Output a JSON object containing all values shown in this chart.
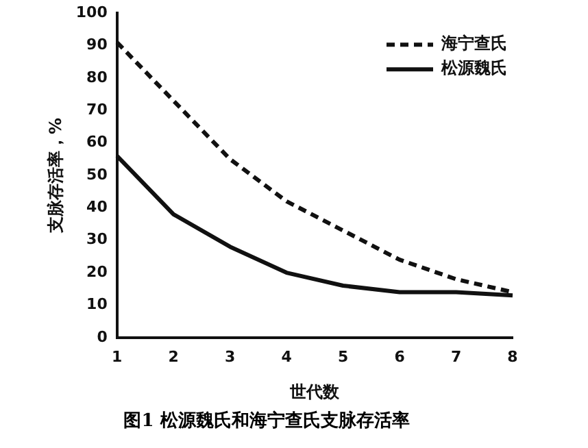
{
  "chart_data": {
    "type": "line",
    "xlabel": "世代数",
    "ylabel": "支脉存活率，%",
    "annotations": [
      "图1 松源魏氏和海宁查氏支脉存活率"
    ],
    "categories": [
      "1",
      "2",
      "3",
      "4",
      "5",
      "6",
      "7",
      "8"
    ],
    "series": [
      {
        "name": "海宁查氏",
        "color": "#111111",
        "line_style": "dashed",
        "values": [
          91,
          73,
          55,
          42,
          33,
          24,
          18,
          14
        ]
      },
      {
        "name": "松源魏氏",
        "color": "#111111",
        "line_style": "solid",
        "values": [
          56,
          38,
          28,
          20,
          16,
          14,
          14,
          13
        ]
      }
    ],
    "ylim": [
      0,
      100
    ],
    "yticks": [
      0,
      10,
      20,
      30,
      40,
      50,
      60,
      70,
      80,
      90,
      100
    ],
    "grid": false,
    "legend": "top right",
    "marker": "none"
  }
}
